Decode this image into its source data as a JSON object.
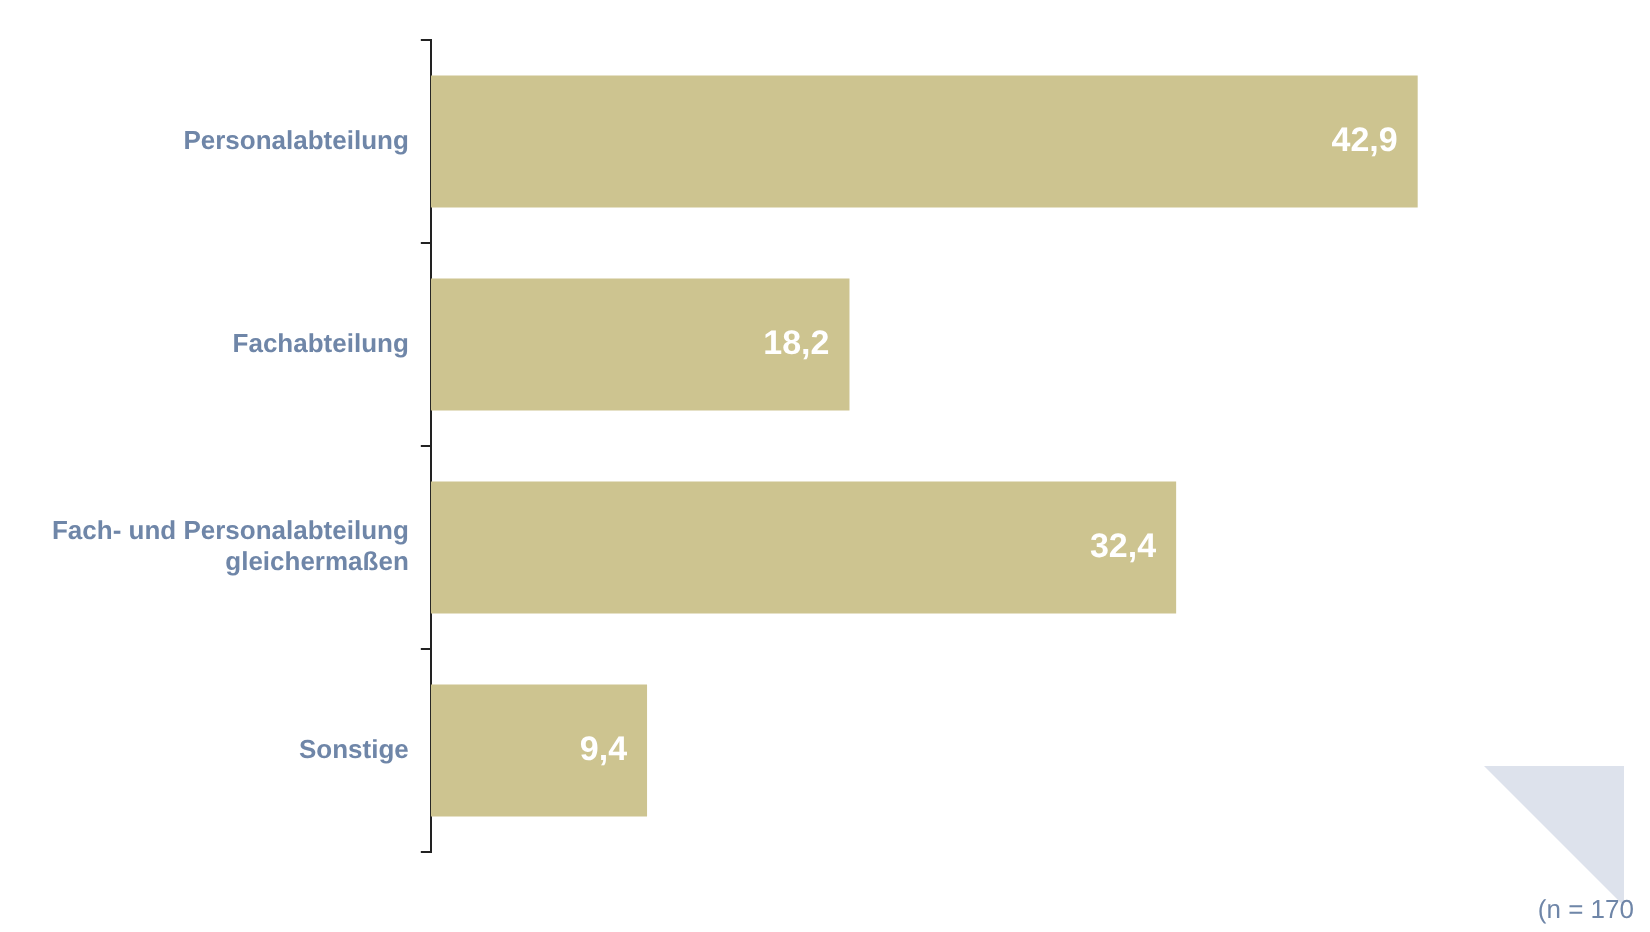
{
  "chart_data": {
    "type": "bar",
    "orientation": "horizontal",
    "categories": [
      "Personalabteilung",
      "Fachabteilung",
      "Fach- und Personalabteilung gleichermaßen",
      "Sonstige"
    ],
    "values": [
      42.9,
      18.2,
      32.4,
      9.4
    ],
    "value_labels": [
      "42,9",
      "18,2",
      "32,4",
      "9,4"
    ],
    "color": "#cdc490",
    "tick_labels": "y",
    "legend": false,
    "annotations": [
      "(n = 170"
    ]
  }
}
